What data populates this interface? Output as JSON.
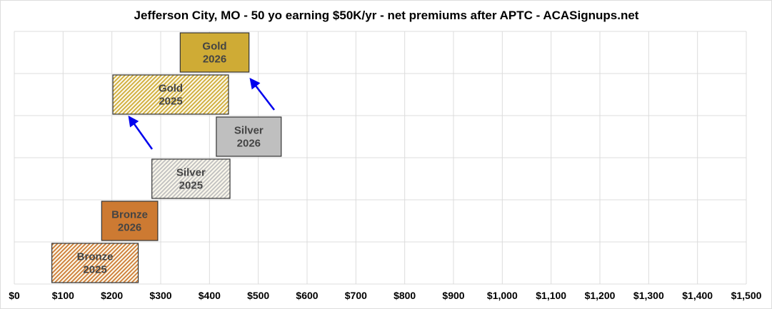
{
  "chart_data": {
    "type": "bar",
    "orientation": "horizontal-floating",
    "title": "Jefferson City, MO - 50 yo earning $50K/yr - net premiums after APTC - ACASignups.net",
    "xlim": [
      0,
      1500
    ],
    "x_ticks": [
      0,
      100,
      200,
      300,
      400,
      500,
      600,
      700,
      800,
      900,
      1000,
      1100,
      1200,
      1300,
      1400,
      1500
    ],
    "x_tick_labels": [
      "$0",
      "$100",
      "$200",
      "$300",
      "$400",
      "$500",
      "$600",
      "$700",
      "$800",
      "$900",
      "$1,000",
      "$1,100",
      "$1,200",
      "$1,300",
      "$1,400",
      "$1,500"
    ],
    "grid": true,
    "bars": [
      {
        "label_line1": "Gold",
        "label_line2": "2026",
        "min": 340,
        "max": 481,
        "color": "#cfab35",
        "hatched": false
      },
      {
        "label_line1": "Gold",
        "label_line2": "2025",
        "min": 202,
        "max": 439,
        "color": "#cfab35",
        "hatched": true
      },
      {
        "label_line1": "Silver",
        "label_line2": "2026",
        "min": 414,
        "max": 547,
        "color": "#bfbfbf",
        "hatched": false
      },
      {
        "label_line1": "Silver",
        "label_line2": "2025",
        "min": 282,
        "max": 442,
        "color": "#bfbfbf",
        "hatched": true
      },
      {
        "label_line1": "Bronze",
        "label_line2": "2026",
        "min": 179,
        "max": 294,
        "color": "#cd7a32",
        "hatched": false
      },
      {
        "label_line1": "Bronze",
        "label_line2": "2025",
        "min": 77,
        "max": 254,
        "color": "#cd7a32",
        "hatched": true
      }
    ],
    "annotations": [
      {
        "type": "arrow",
        "from_bar": "Silver 2026",
        "to_bar": "Gold 2026",
        "color": "#0000ee"
      },
      {
        "type": "arrow",
        "from_bar": "Silver 2025",
        "to_bar": "Gold 2025",
        "color": "#0000ee"
      }
    ]
  }
}
